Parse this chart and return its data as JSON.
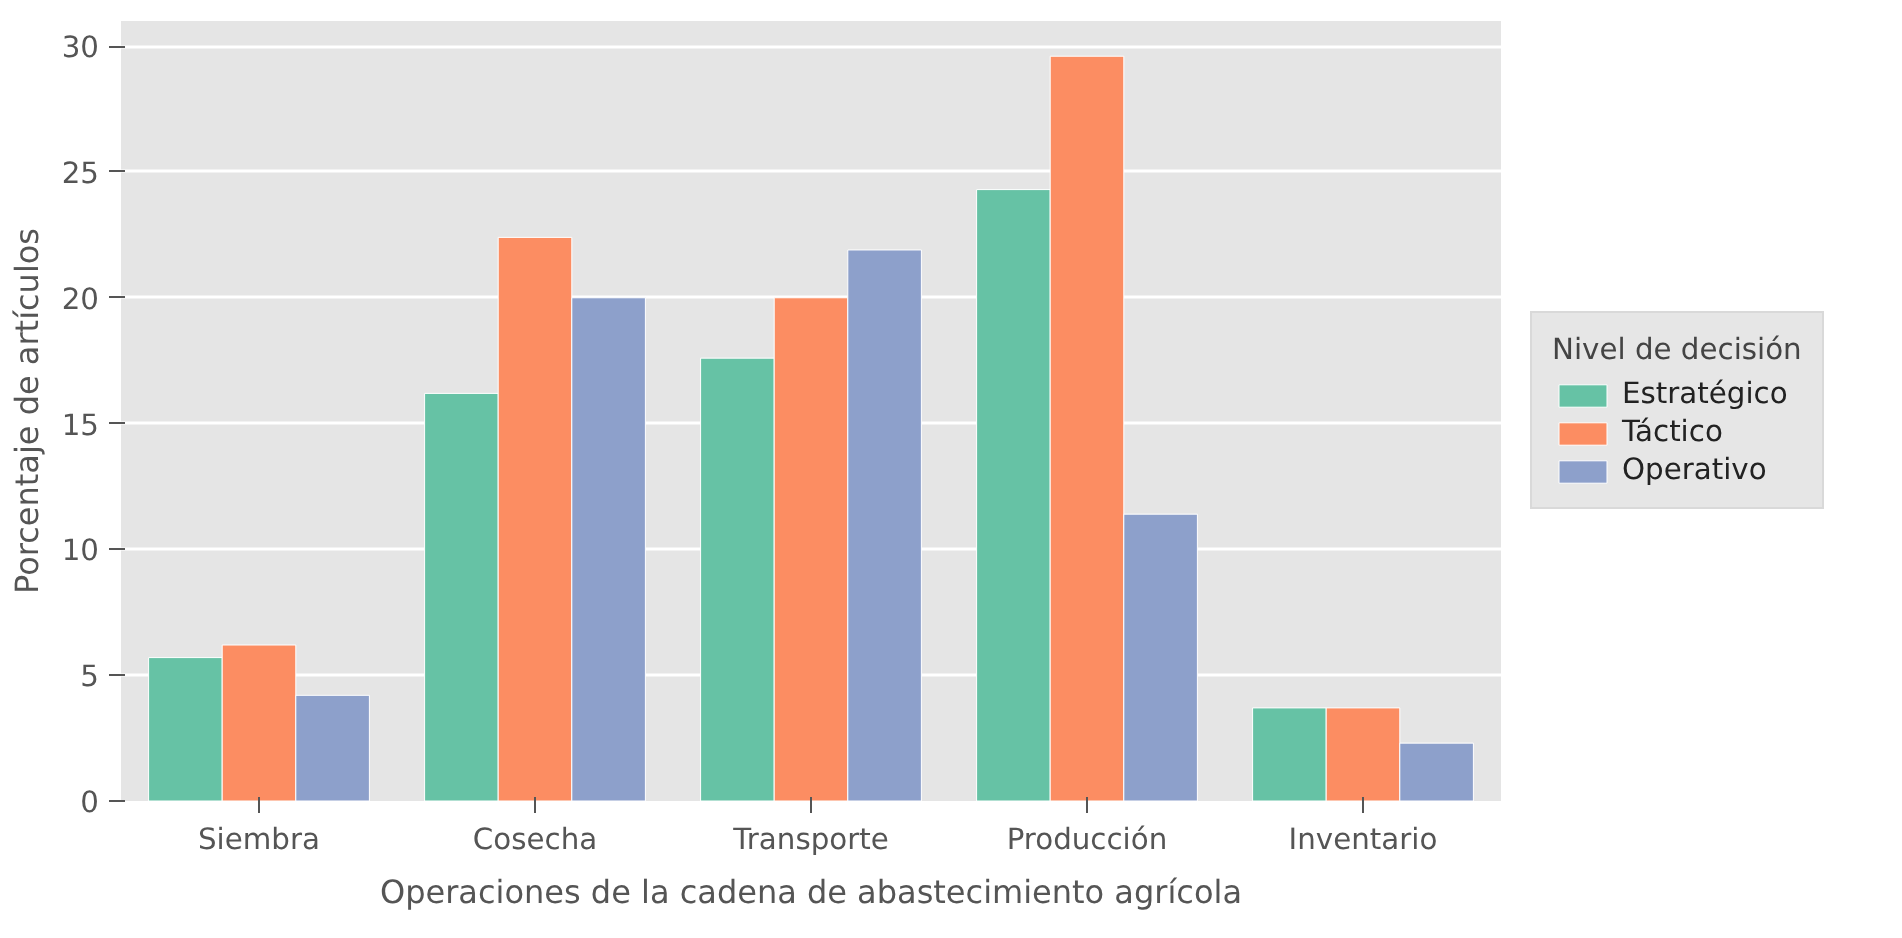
{
  "chart_data": {
    "type": "bar",
    "xlabel": "Operaciones de la cadena de abastecimiento agrícola",
    "ylabel": "Porcentaje de artículos",
    "legend_title": "Nivel de decisión",
    "categories": [
      "Siembra",
      "Cosecha",
      "Transporte",
      "Producción",
      "Inventario"
    ],
    "series": [
      {
        "name": "Estratégico",
        "color": "#66c2a5",
        "values": [
          5.7,
          16.2,
          17.6,
          24.3,
          3.7
        ]
      },
      {
        "name": "Táctico",
        "color": "#fc8d62",
        "values": [
          6.2,
          22.4,
          20.0,
          29.6,
          3.7
        ]
      },
      {
        "name": "Operativo",
        "color": "#8da0cb",
        "values": [
          4.2,
          20.0,
          21.9,
          11.4,
          2.3
        ]
      }
    ],
    "ylim": [
      0,
      31
    ],
    "yticks": [
      0,
      5,
      10,
      15,
      20,
      25,
      30
    ],
    "grid": "y",
    "legend": "right"
  }
}
